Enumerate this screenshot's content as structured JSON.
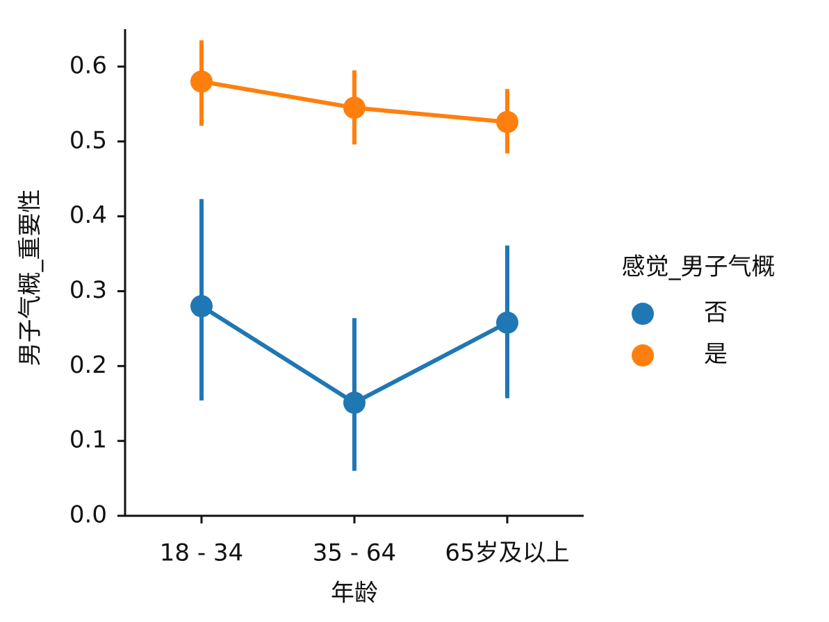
{
  "chart_data": {
    "type": "line",
    "x_label": "年龄",
    "y_label": "男子气概_重要性",
    "legend_title": "感觉_男子气概",
    "legend_position": "right",
    "categories": [
      "18 - 34",
      "35 - 64",
      "65岁及以上"
    ],
    "series": [
      {
        "name": "否",
        "color": "#1f77b4",
        "values": [
          0.28,
          0.151,
          0.258
        ],
        "ci_low": [
          0.154,
          0.06,
          0.157
        ],
        "ci_high": [
          0.423,
          0.264,
          0.361
        ]
      },
      {
        "name": "是",
        "color": "#ff7f0e",
        "values": [
          0.58,
          0.545,
          0.526
        ],
        "ci_low": [
          0.521,
          0.496,
          0.484
        ],
        "ci_high": [
          0.635,
          0.595,
          0.57
        ]
      }
    ],
    "ylim": [
      0,
      0.65
    ],
    "yticks": [
      {
        "value": 0,
        "label": "0.0"
      },
      0.1,
      0.2,
      0.3,
      0.4,
      0.5,
      0.6
    ]
  }
}
